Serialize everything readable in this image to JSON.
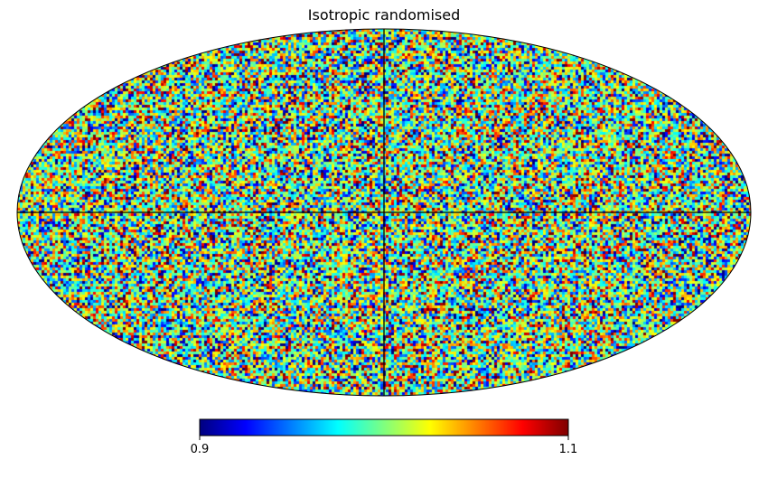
{
  "chart_data": {
    "type": "heatmap",
    "title": "Isotropic randomised",
    "projection": "mollweide",
    "colormap": "jet",
    "graticule": "equator and central meridian only",
    "colorbar": {
      "placement": "bottom",
      "min": 0.9,
      "max": 1.1,
      "tick_labels": [
        "0.9",
        "1.1"
      ]
    },
    "jet_stops": [
      "#00007f",
      "#0000ff",
      "#007fff",
      "#00ffff",
      "#7fff7f",
      "#ffff00",
      "#ff7f00",
      "#ff0000",
      "#7f0000"
    ]
  }
}
